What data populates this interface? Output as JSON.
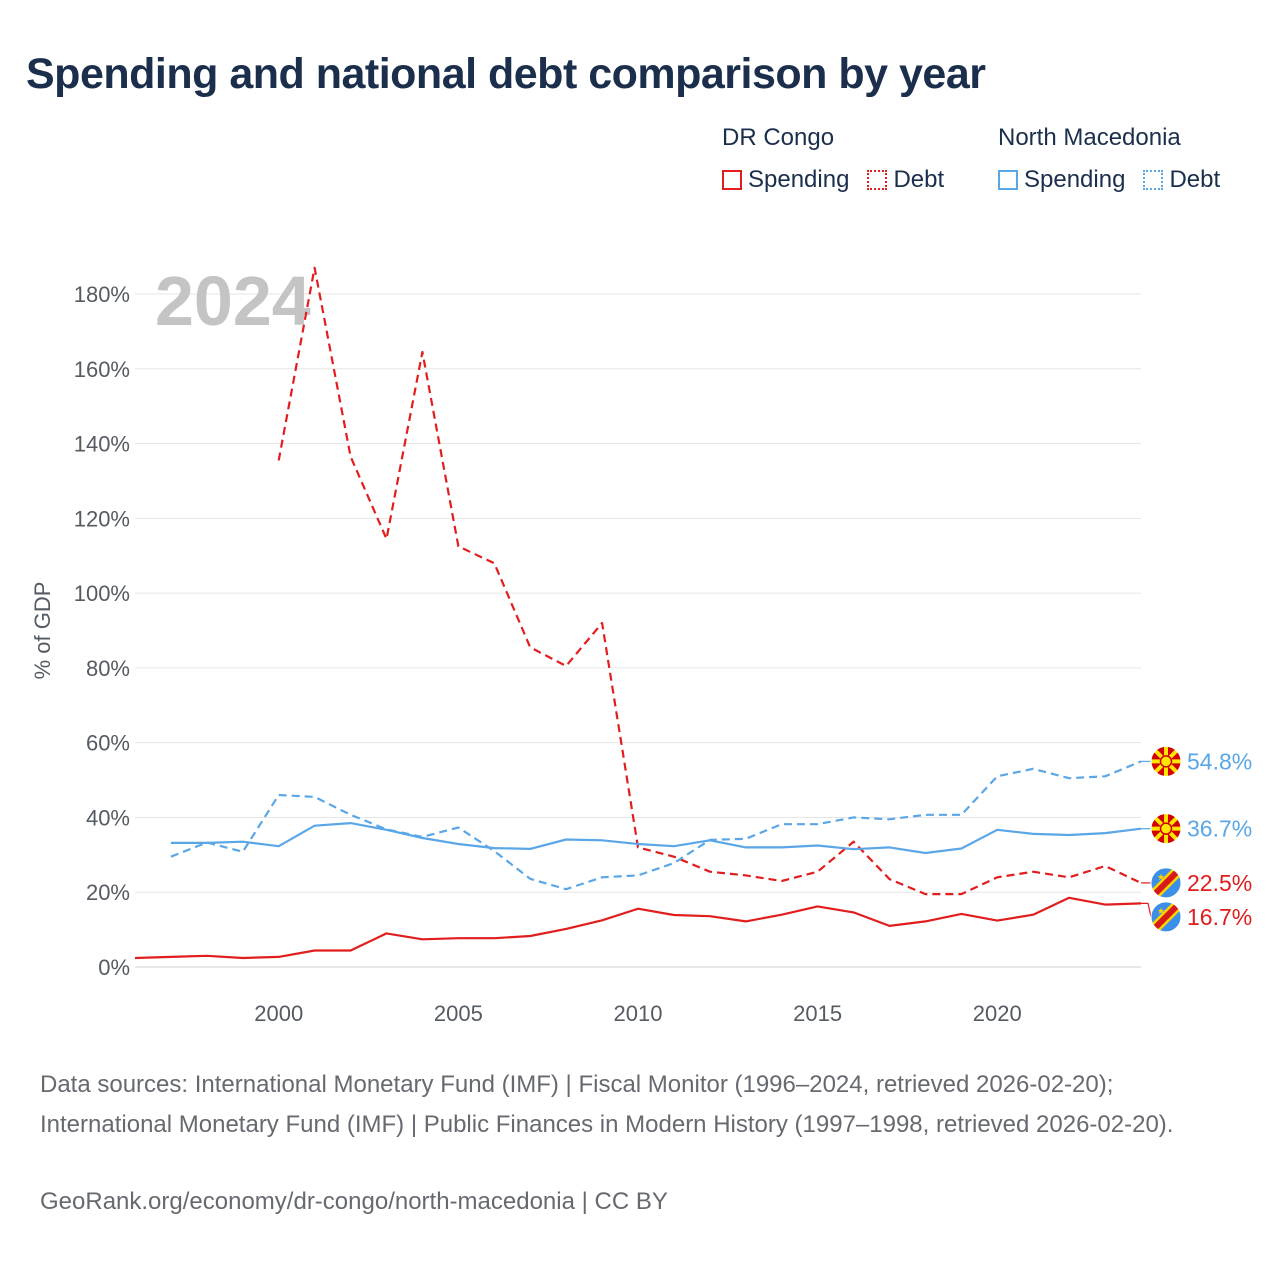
{
  "title": "Spending and national debt comparison by year",
  "legend": [
    {
      "group": "DR Congo",
      "items": [
        {
          "label": "Spending",
          "style": "solid",
          "color": "#e11d1d"
        },
        {
          "label": "Debt",
          "style": "dotted",
          "color": "#e11d1d"
        }
      ]
    },
    {
      "group": "North Macedonia",
      "items": [
        {
          "label": "Spending",
          "style": "solid",
          "color": "#5aa6e6"
        },
        {
          "label": "Debt",
          "style": "dotted",
          "color": "#5aa6e6"
        }
      ]
    }
  ],
  "chart_data": {
    "type": "line",
    "year_label": "2024",
    "ylabel": "% of GDP",
    "xlim": [
      1996,
      2024
    ],
    "ylim": [
      0,
      180
    ],
    "y_ticks": [
      0,
      20,
      40,
      60,
      80,
      100,
      120,
      140,
      160,
      180
    ],
    "y_tick_labels": [
      "0%",
      "20%",
      "40%",
      "60%",
      "80%",
      "100%",
      "120%",
      "140%",
      "160%",
      "180%"
    ],
    "x_ticks": [
      2000,
      2005,
      2010,
      2015,
      2020
    ],
    "x_tick_labels": [
      "2000",
      "2005",
      "2010",
      "2015",
      "2020"
    ],
    "series": [
      {
        "name": "DR Congo Debt",
        "color": "#e11d1d",
        "dash": true,
        "end_label": "22.5%",
        "flag": "dr-congo",
        "x": [
          2000,
          2001,
          2002,
          2003,
          2004,
          2005,
          2006,
          2007,
          2008,
          2009,
          2010,
          2011,
          2012,
          2013,
          2014,
          2015,
          2016,
          2017,
          2018,
          2019,
          2020,
          2021,
          2022,
          2023,
          2024
        ],
        "values": [
          135.5,
          187,
          136.5,
          114.5,
          164.5,
          112.5,
          108,
          85.5,
          80.5,
          92,
          32,
          29.5,
          25.5,
          24.5,
          23,
          25.5,
          33.5,
          23.5,
          19.5,
          19.5,
          24,
          25.5,
          24,
          27,
          22.5
        ]
      },
      {
        "name": "DR Congo Spending",
        "color": "#e11d1d",
        "dash": false,
        "end_label": "16.7%",
        "flag": "dr-congo",
        "x": [
          1996,
          1997,
          1998,
          1999,
          2000,
          2001,
          2002,
          2003,
          2004,
          2005,
          2006,
          2007,
          2008,
          2009,
          2010,
          2011,
          2012,
          2013,
          2014,
          2015,
          2016,
          2017,
          2018,
          2019,
          2020,
          2021,
          2022,
          2023,
          2024
        ],
        "values": [
          2.4,
          2.7,
          3,
          2.4,
          2.7,
          4.4,
          4.4,
          9,
          7.4,
          7.7,
          7.7,
          8.3,
          10.2,
          12.5,
          15.6,
          13.9,
          13.6,
          12.2,
          14,
          16.2,
          14.6,
          11,
          12.2,
          14.2,
          12.4,
          14,
          18.5,
          16.7,
          17
        ]
      },
      {
        "name": "North Macedonia Debt",
        "color": "#5aa6e6",
        "dash": true,
        "end_label": "54.8%",
        "flag": "north-macedonia",
        "x": [
          1997,
          1998,
          1999,
          2000,
          2001,
          2002,
          2003,
          2004,
          2005,
          2006,
          2007,
          2008,
          2009,
          2010,
          2011,
          2012,
          2013,
          2014,
          2015,
          2016,
          2017,
          2018,
          2019,
          2020,
          2021,
          2022,
          2023,
          2024
        ],
        "values": [
          29.5,
          33.3,
          30.8,
          46,
          45.5,
          40.7,
          36.8,
          34.8,
          37.3,
          31,
          23.6,
          20.8,
          24,
          24.5,
          27.8,
          34,
          34.3,
          38.2,
          38.2,
          40,
          39.5,
          40.7,
          40.7,
          51,
          53,
          50.5,
          51,
          55
        ]
      },
      {
        "name": "North Macedonia Spending",
        "color": "#5aa6e6",
        "dash": false,
        "end_label": "36.7%",
        "flag": "north-macedonia",
        "x": [
          1997,
          1998,
          1999,
          2000,
          2001,
          2002,
          2003,
          2004,
          2005,
          2006,
          2007,
          2008,
          2009,
          2010,
          2011,
          2012,
          2013,
          2014,
          2015,
          2016,
          2017,
          2018,
          2019,
          2020,
          2021,
          2022,
          2023,
          2024
        ],
        "values": [
          33.2,
          33.2,
          33.5,
          32.3,
          37.8,
          38.5,
          36.7,
          34.5,
          32.9,
          31.8,
          31.6,
          34.1,
          33.9,
          32.9,
          32.3,
          33.9,
          32,
          32,
          32.5,
          31.5,
          32,
          30.5,
          31.7,
          36.7,
          35.6,
          35.3,
          35.8,
          37
        ]
      }
    ]
  },
  "footer": {
    "sources": "Data sources: International Monetary Fund (IMF) | Fiscal Monitor (1996–2024, retrieved 2026-02-20); International Monetary Fund (IMF) | Public Finances in Modern History (1997–1998, retrieved 2026-02-20).",
    "credit": "GeoRank.org/economy/dr-congo/north-macedonia | CC BY"
  }
}
